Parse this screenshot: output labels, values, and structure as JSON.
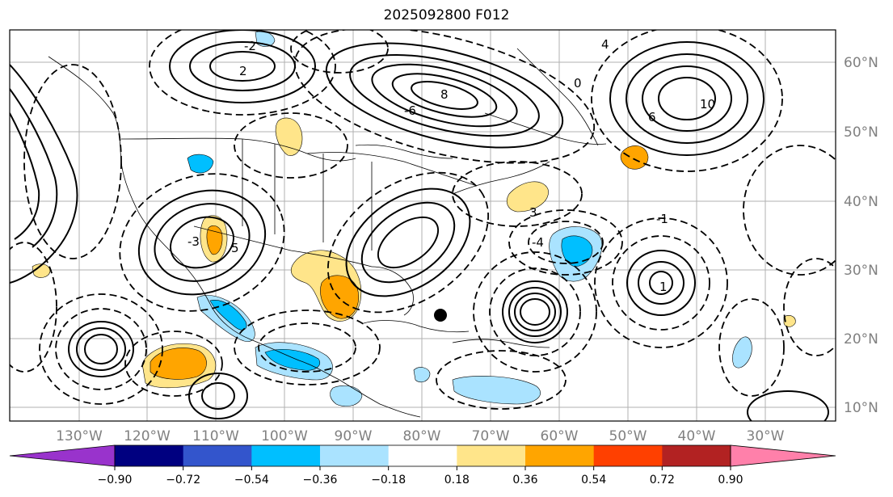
{
  "title": "2025092800 F012",
  "map": {
    "lon_labels": [
      "130°W",
      "120°W",
      "110°W",
      "100°W",
      "90°W",
      "80°W",
      "70°W",
      "60°W",
      "50°W",
      "40°W",
      "30°W"
    ],
    "lat_labels": [
      "60°N",
      "50°N",
      "40°N",
      "30°N",
      "20°N",
      "10°N"
    ],
    "contour_labels": [
      "-2",
      "2",
      "-4",
      "3",
      "-1",
      "8",
      "4",
      "10",
      "6",
      "-6",
      "0",
      "1",
      "5",
      "-3"
    ],
    "colors": {
      "grid": "#b0b0b0",
      "tick_label": "#808080",
      "contour": "#000000"
    }
  },
  "colorbar": {
    "ticks": [
      "−0.90",
      "−0.72",
      "−0.54",
      "−0.36",
      "−0.18",
      "0.18",
      "0.36",
      "0.54",
      "0.72",
      "0.90"
    ],
    "colors": [
      "#9933cc",
      "#000080",
      "#3355cc",
      "#00bfff",
      "#aae3ff",
      "#ffffff",
      "#ffe58a",
      "#ffa500",
      "#ff4000",
      "#b22222",
      "#ff80aa"
    ]
  }
}
